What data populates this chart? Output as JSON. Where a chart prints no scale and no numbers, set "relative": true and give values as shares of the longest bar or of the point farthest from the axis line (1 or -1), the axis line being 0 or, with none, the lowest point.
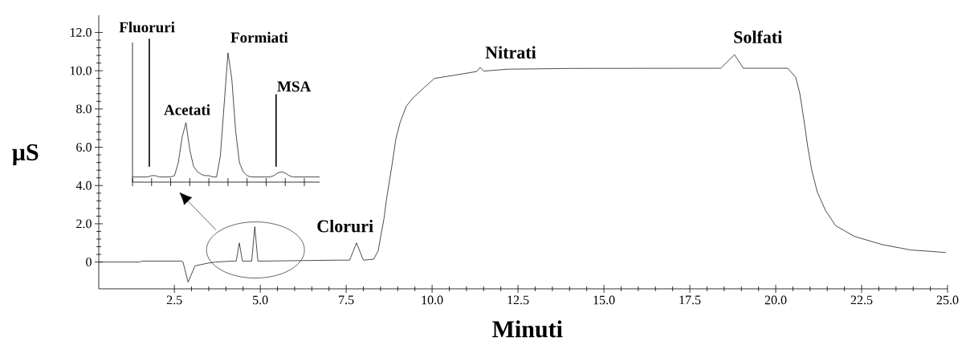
{
  "chart_data": [
    {
      "type": "line",
      "xlabel": "Minuti",
      "ylabel": "µS",
      "x": [
        0.3,
        1.5,
        1.55,
        2.7,
        2.75,
        2.9,
        3.1,
        3.5,
        3.7,
        4.2,
        4.3,
        4.39,
        4.48,
        4.6,
        4.75,
        4.84,
        4.93,
        5.1,
        7.3,
        7.6,
        7.8,
        8.0,
        8.3,
        8.43,
        8.6,
        8.67,
        8.83,
        8.95,
        9.07,
        9.25,
        9.44,
        9.77,
        10.07,
        10.6,
        11.3,
        11.4,
        11.5,
        12.2,
        14.1,
        18.4,
        18.8,
        19.06,
        20.35,
        20.58,
        20.7,
        20.82,
        20.93,
        21.05,
        21.21,
        21.45,
        21.75,
        22.29,
        23.08,
        23.93,
        24.95
      ],
      "values": [
        0,
        0,
        0.05,
        0.05,
        0,
        -1.05,
        -0.2,
        -0.05,
        0,
        0.05,
        0.05,
        1.0,
        0.05,
        0.05,
        0.05,
        1.85,
        0.05,
        0.05,
        0.1,
        0.1,
        1.0,
        0.1,
        0.15,
        0.59,
        2.27,
        3.24,
        5.04,
        6.47,
        7.3,
        8.15,
        8.57,
        9.12,
        9.6,
        9.75,
        9.96,
        10.17,
        9.98,
        10.08,
        10.12,
        10.13,
        10.84,
        10.13,
        10.13,
        9.66,
        8.82,
        7.44,
        6.05,
        4.79,
        3.66,
        2.69,
        1.89,
        1.34,
        0.92,
        0.63,
        0.5
      ],
      "color": "#000000",
      "xlim": [
        0.3,
        25
      ],
      "ylim": [
        -1.4,
        12.9
      ],
      "xticks": [
        2.5,
        {
          "value": 5,
          "label": "5.0"
        },
        7.5,
        {
          "value": 10,
          "label": "10.0"
        },
        12.5,
        {
          "value": 15,
          "label": "15.0"
        },
        17.5,
        {
          "value": 20,
          "label": "20.0"
        },
        22.5,
        {
          "value": 25,
          "label": "25.0"
        }
      ],
      "yticks": [
        0,
        {
          "value": 2,
          "label": "2.0"
        },
        {
          "value": 4,
          "label": "4.0"
        },
        {
          "value": 6,
          "label": "6.0"
        },
        {
          "value": 8,
          "label": "8.0"
        },
        {
          "value": 10,
          "label": "10.0"
        },
        {
          "value": 12,
          "label": "12.0"
        }
      ],
      "annotations": [
        {
          "text": "Cloruri",
          "x": 7.8,
          "y": 1.0
        },
        {
          "text": "Nitrati",
          "x": 11.4,
          "y": 10.17
        },
        {
          "text": "Solfati",
          "x": 18.8,
          "y": 10.84
        }
      ]
    },
    {
      "type": "line",
      "relative": true,
      "color": "#000000",
      "categories": [
        null,
        null,
        null,
        null,
        null,
        null,
        null,
        null,
        null,
        null,
        null,
        null,
        null,
        null,
        null,
        null,
        null,
        null,
        null,
        null,
        null,
        null,
        null,
        null,
        null,
        null,
        null,
        null,
        null,
        null,
        null,
        null,
        null,
        null,
        null,
        null,
        null,
        null,
        null,
        null,
        null,
        null,
        null,
        null,
        null,
        null,
        null,
        null,
        null,
        null
      ],
      "values": [
        0.04,
        0.04,
        0.04,
        0.04,
        0.04,
        0.05,
        0.05,
        0.04,
        0.04,
        0.04,
        0.04,
        0.05,
        0.15,
        0.35,
        0.46,
        0.25,
        0.12,
        0.08,
        0.06,
        0.05,
        0.05,
        0.04,
        0.04,
        0.2,
        0.6,
        1.0,
        0.8,
        0.4,
        0.15,
        0.08,
        0.05,
        0.04,
        0.04,
        0.04,
        0.04,
        0.04,
        0.04,
        0.05,
        0.07,
        0.08,
        0.07,
        0.05,
        0.04,
        0.04,
        0.04,
        0.04,
        0.04,
        0.04,
        0.04,
        0.04
      ],
      "annotations": [
        "Fluoruri",
        "Acetati",
        "Formiati",
        "MSA"
      ]
    }
  ]
}
